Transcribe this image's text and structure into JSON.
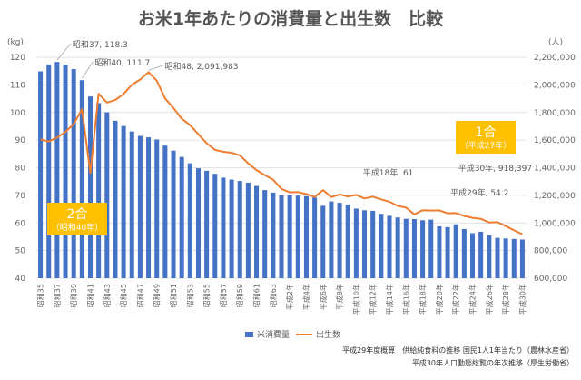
{
  "title": "お米1年あたりの消費量と出生数　比較",
  "left_unit": "(kg)",
  "right_unit": "(人)",
  "legend": {
    "bar_label": "米消費量",
    "line_label": "出生数"
  },
  "source": [
    "平成29年度概算　供給純食料の推移 国民1人1年当たり（農林水産省）",
    "平成30年人口動態総覧の年次推移（厚生労働省）"
  ],
  "colors": {
    "bar": "#4472C4",
    "line": "#ED7D31",
    "box": "#FFC000",
    "grid": "#D9D9D9"
  },
  "chart_data": {
    "type": "bar",
    "categories": [
      "昭和35",
      "昭和36",
      "昭和37",
      "昭和38",
      "昭和39",
      "昭和40",
      "昭和41",
      "昭和42",
      "昭和43",
      "昭和44",
      "昭和45",
      "昭和46",
      "昭和47",
      "昭和48",
      "昭和49",
      "昭和50",
      "昭和51",
      "昭和52",
      "昭和53",
      "昭和54",
      "昭和55",
      "昭和56",
      "昭和57",
      "昭和58",
      "昭和59",
      "昭和60",
      "昭和61",
      "昭和62",
      "昭和63",
      "昭和64",
      "平成2年",
      "平成3年",
      "平成4年",
      "平成5年",
      "平成6年",
      "平成7年",
      "平成8年",
      "平成9年",
      "平成10年",
      "平成11年",
      "平成12年",
      "平成13年",
      "平成14年",
      "平成15年",
      "平成16年",
      "平成17年",
      "平成18年",
      "平成19年",
      "平成20年",
      "平成21年",
      "平成22年",
      "平成23年",
      "平成24年",
      "平成25年",
      "平成26年",
      "平成27年",
      "平成28年",
      "平成29年",
      "平成30年"
    ],
    "x_tick_labels": [
      "昭和35",
      "",
      "昭和37",
      "",
      "昭和39",
      "",
      "昭和41",
      "",
      "昭和43",
      "",
      "昭和45",
      "",
      "昭和47",
      "",
      "昭和49",
      "",
      "昭和51",
      "",
      "昭和53",
      "",
      "昭和55",
      "",
      "昭和57",
      "",
      "昭和59",
      "",
      "昭和61",
      "",
      "昭和63",
      "",
      "平成2年",
      "",
      "平成4年",
      "",
      "平成6年",
      "",
      "平成8年",
      "",
      "平成10年",
      "",
      "平成12年",
      "",
      "平成14年",
      "",
      "平成16年",
      "",
      "平成18年",
      "",
      "平成20年",
      "",
      "平成22年",
      "",
      "平成24年",
      "",
      "平成26年",
      "",
      "平成28年",
      "",
      "平成30年"
    ],
    "series": [
      {
        "name": "米消費量",
        "type": "bar",
        "axis": "left",
        "values": [
          114.9,
          117.4,
          118.3,
          117.3,
          115.7,
          111.7,
          105.8,
          103.4,
          100.1,
          97.0,
          95.1,
          93.1,
          91.5,
          91.0,
          90.2,
          88.0,
          86.2,
          83.9,
          81.6,
          79.8,
          78.9,
          77.8,
          76.4,
          75.7,
          75.2,
          74.6,
          73.4,
          71.9,
          71.0,
          70.0,
          70.0,
          69.9,
          69.7,
          69.2,
          66.2,
          67.8,
          67.3,
          66.7,
          65.2,
          64.6,
          64.4,
          63.3,
          62.6,
          62.0,
          61.5,
          61.4,
          61.0,
          61.2,
          58.8,
          58.5,
          59.5,
          57.8,
          56.3,
          56.8,
          55.5,
          54.6,
          54.4,
          54.2,
          54.0
        ]
      },
      {
        "name": "出生数",
        "type": "line",
        "axis": "right",
        "values": [
          1606041,
          1589372,
          1618616,
          1659521,
          1716761,
          1823697,
          1360974,
          1935647,
          1871839,
          1889815,
          1934239,
          2000973,
          2038682,
          2091983,
          2029989,
          1901440,
          1832617,
          1755100,
          1708643,
          1642580,
          1576889,
          1529455,
          1515392,
          1508687,
          1489780,
          1431577,
          1382946,
          1346658,
          1314006,
          1246802,
          1221585,
          1223245,
          1208989,
          1188282,
          1238328,
          1187064,
          1206555,
          1191665,
          1203147,
          1177669,
          1190547,
          1170662,
          1153855,
          1123610,
          1110721,
          1062530,
          1092674,
          1089818,
          1091156,
          1070035,
          1071304,
          1050806,
          1037231,
          1029816,
          1003539,
          1005721,
          977242,
          946146,
          918397
        ]
      }
    ],
    "y_left": {
      "min": 40,
      "max": 120,
      "ticks": [
        40,
        50,
        60,
        70,
        80,
        90,
        100,
        110,
        120
      ]
    },
    "y_right": {
      "min": 600000,
      "max": 2200000,
      "ticks": [
        "600,000",
        "800,000",
        "1,000,000",
        "1,200,000",
        "1,400,000",
        "1,600,000",
        "1,800,000",
        "2,000,000",
        "2,200,000"
      ]
    },
    "grid": true,
    "legend_position": "bottom",
    "annotations": [
      {
        "index": 2,
        "text": "昭和37, 118.3"
      },
      {
        "index": 5,
        "text": "昭和40, 111.7"
      },
      {
        "index": 13,
        "text": "昭和48, 2,091,983"
      },
      {
        "index": 46,
        "text": "平成18年, 61"
      },
      {
        "index": 57,
        "text": "平成29年, 54.2"
      },
      {
        "index": 58,
        "text": "平成30年, 918,397"
      }
    ],
    "callouts": [
      {
        "big": "2合",
        "small": "（昭和40年）"
      },
      {
        "big": "1合",
        "small": "（平成27年）"
      }
    ]
  }
}
